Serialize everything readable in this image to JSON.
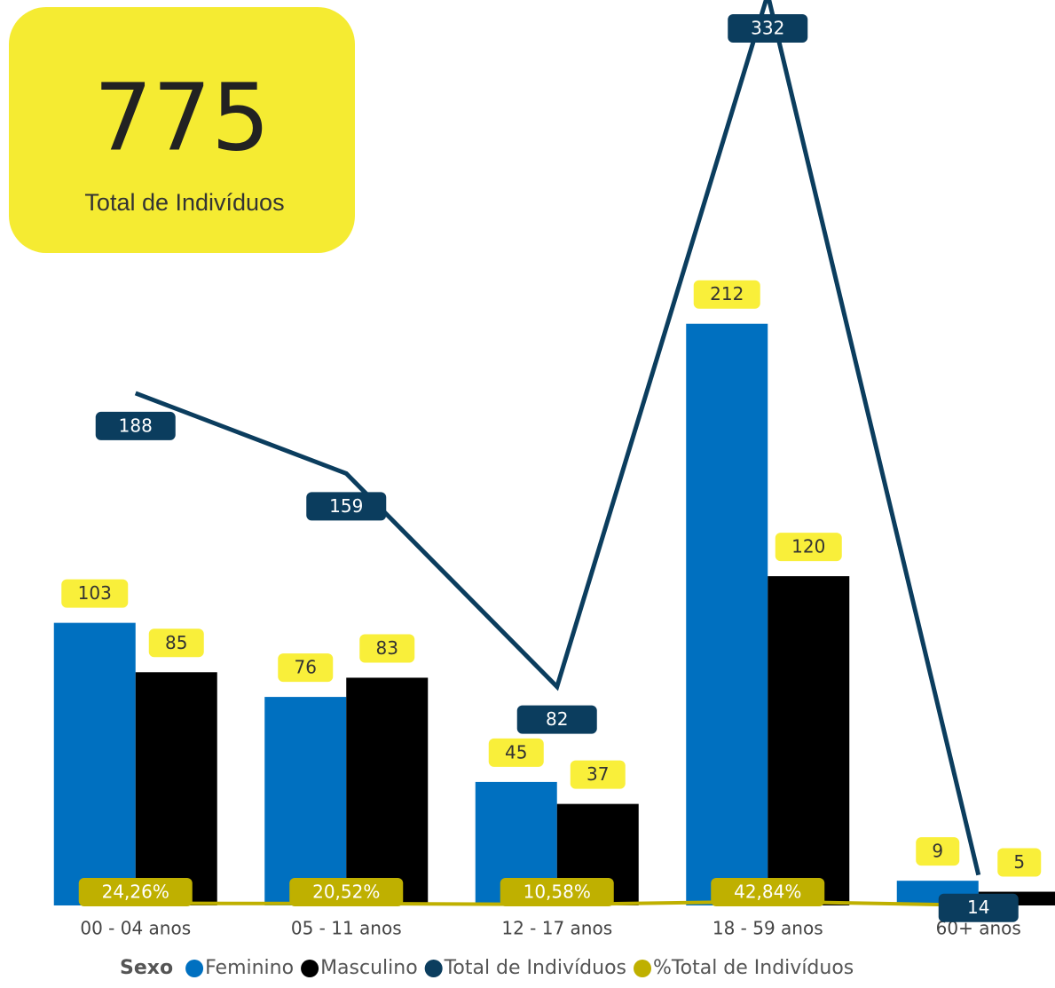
{
  "card": {
    "value": "775",
    "label": "Total de Indivíduos"
  },
  "chart_data": {
    "type": "bar",
    "categories": [
      "00 - 04 anos",
      "05 - 11 anos",
      "12 - 17 anos",
      "18 - 59 anos",
      "60+ anos"
    ],
    "legend_title": "Sexo",
    "ylim": [
      0,
      330
    ],
    "y2lim": [
      3,
      330
    ],
    "y3lim": [
      0,
      10000
    ],
    "series": [
      {
        "name": "Feminino",
        "color": "#0070c0",
        "values": [
          103,
          76,
          45,
          212,
          9
        ]
      },
      {
        "name": "Masculino",
        "color": "#000000",
        "values": [
          85,
          83,
          37,
          120,
          5
        ]
      },
      {
        "name": "Total de Indivíduos",
        "type": "line",
        "axis": "y2",
        "color": "#0b3d5e",
        "values": [
          188,
          159,
          82,
          332,
          14
        ]
      },
      {
        "name": "%Total de Indivíduos",
        "type": "line",
        "axis": "y3",
        "color": "#bfb000",
        "values": [
          24.26,
          20.52,
          10.58,
          42.84,
          1.81
        ],
        "value_labels": [
          "24,26%",
          "20,52%",
          "10,58%",
          "42,84%",
          null
        ]
      }
    ]
  }
}
